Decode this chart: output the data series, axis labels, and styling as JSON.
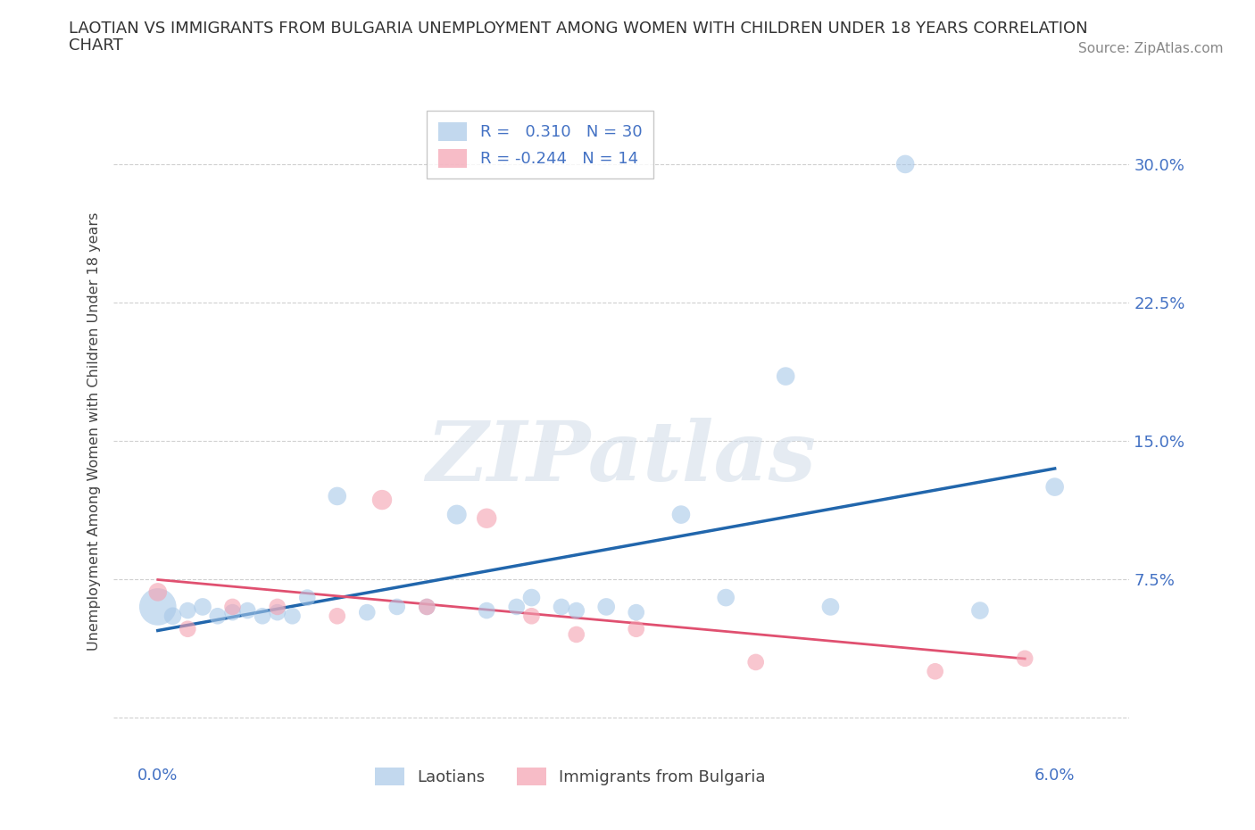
{
  "title_line1": "LAOTIAN VS IMMIGRANTS FROM BULGARIA UNEMPLOYMENT AMONG WOMEN WITH CHILDREN UNDER 18 YEARS CORRELATION",
  "title_line2": "CHART",
  "source": "Source: ZipAtlas.com",
  "ylabel": "Unemployment Among Women with Children Under 18 years",
  "xlim": [
    -0.003,
    0.065
  ],
  "ylim": [
    -0.025,
    0.335
  ],
  "laotian_R": 0.31,
  "laotian_N": 30,
  "bulgaria_R": -0.244,
  "bulgaria_N": 14,
  "laotian_color": "#a8c8e8",
  "bulgaria_color": "#f4a0b0",
  "laotian_line_color": "#2166ac",
  "bulgaria_line_color": "#e05070",
  "laotian_x": [
    0.0,
    0.001,
    0.002,
    0.003,
    0.004,
    0.005,
    0.006,
    0.007,
    0.008,
    0.009,
    0.01,
    0.012,
    0.014,
    0.016,
    0.018,
    0.02,
    0.022,
    0.024,
    0.025,
    0.027,
    0.028,
    0.03,
    0.032,
    0.035,
    0.038,
    0.042,
    0.045,
    0.05,
    0.055,
    0.06
  ],
  "laotian_y": [
    0.06,
    0.055,
    0.058,
    0.06,
    0.055,
    0.057,
    0.058,
    0.055,
    0.057,
    0.055,
    0.065,
    0.12,
    0.057,
    0.06,
    0.06,
    0.11,
    0.058,
    0.06,
    0.065,
    0.06,
    0.058,
    0.06,
    0.057,
    0.11,
    0.065,
    0.185,
    0.06,
    0.3,
    0.058,
    0.125
  ],
  "laotian_size": [
    900,
    200,
    180,
    200,
    180,
    180,
    180,
    180,
    180,
    180,
    180,
    220,
    180,
    180,
    180,
    250,
    180,
    180,
    200,
    180,
    180,
    200,
    180,
    220,
    200,
    220,
    200,
    220,
    200,
    220
  ],
  "bulgaria_x": [
    0.0,
    0.002,
    0.005,
    0.008,
    0.012,
    0.015,
    0.018,
    0.022,
    0.025,
    0.028,
    0.032,
    0.04,
    0.052,
    0.058
  ],
  "bulgaria_y": [
    0.068,
    0.048,
    0.06,
    0.06,
    0.055,
    0.118,
    0.06,
    0.108,
    0.055,
    0.045,
    0.048,
    0.03,
    0.025,
    0.032
  ],
  "bulgaria_size": [
    220,
    180,
    180,
    180,
    180,
    260,
    180,
    260,
    180,
    180,
    180,
    180,
    180,
    180
  ],
  "x_ticks": [
    0.0,
    0.01,
    0.02,
    0.03,
    0.04,
    0.05,
    0.06
  ],
  "x_tick_labels": [
    "0.0%",
    "",
    "",
    "",
    "",
    "",
    "6.0%"
  ],
  "y_ticks": [
    0.0,
    0.075,
    0.15,
    0.225,
    0.3
  ],
  "y_tick_labels": [
    "",
    "7.5%",
    "15.0%",
    "22.5%",
    "30.0%"
  ],
  "watermark_text": "ZIPatlas",
  "legend_top_labels": [
    "Laotians",
    "Immigrants from Bulgaria"
  ],
  "background_color": "#ffffff",
  "grid_color": "#d0d0d0"
}
